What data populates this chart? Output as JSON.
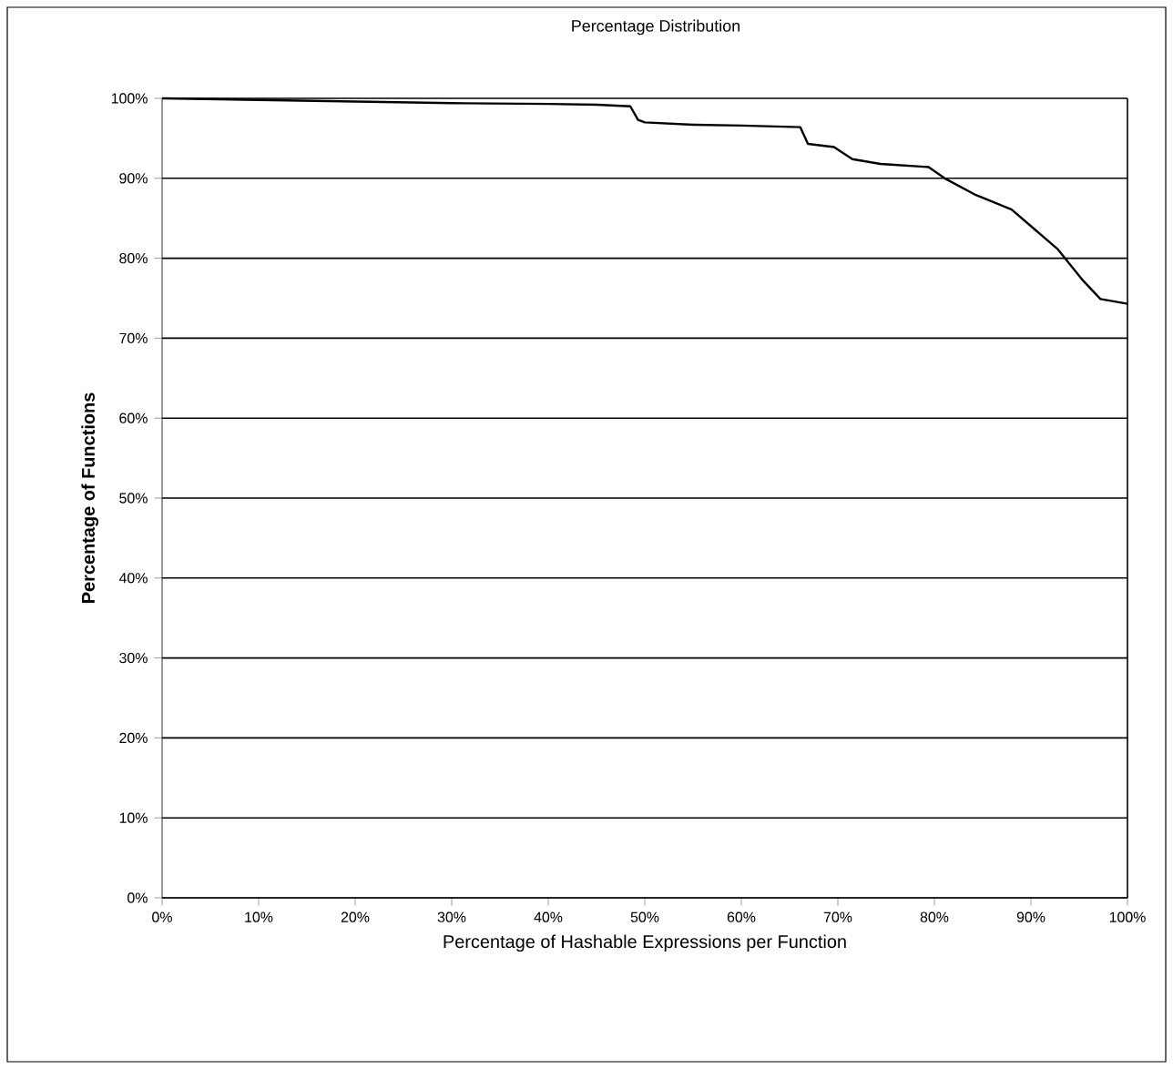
{
  "chart_data": {
    "type": "line",
    "title": "Percentage Distribution",
    "xlabel": "Percentage of Hashable Expressions per Function",
    "ylabel": "Percentage of Functions",
    "x": [
      0,
      10,
      20,
      30,
      40,
      45,
      48.5,
      49.3,
      50,
      55,
      60,
      66.1,
      66.9,
      69.6,
      71.5,
      74.4,
      79.4,
      81.2,
      84.3,
      88,
      90.4,
      92.8,
      95.4,
      97.2,
      100
    ],
    "series": [
      {
        "color": "#000000",
        "values": [
          100,
          99.8,
          99.6,
          99.4,
          99.3,
          99.2,
          99.0,
          97.3,
          97.0,
          96.7,
          96.6,
          96.4,
          94.3,
          93.9,
          92.4,
          91.8,
          91.4,
          89.9,
          87.9,
          86.1,
          83.6,
          81.1,
          77.2,
          74.9,
          74.3
        ]
      }
    ],
    "xlim": [
      0,
      100
    ],
    "ylim": [
      0,
      100
    ],
    "xticks": [
      {
        "value": 0,
        "label": "0%"
      },
      {
        "value": 10,
        "label": "10%"
      },
      {
        "value": 20,
        "label": "20%"
      },
      {
        "value": 30,
        "label": "30%"
      },
      {
        "value": 40,
        "label": "40%"
      },
      {
        "value": 50,
        "label": "50%"
      },
      {
        "value": 60,
        "label": "60%"
      },
      {
        "value": 70,
        "label": "70%"
      },
      {
        "value": 80,
        "label": "80%"
      },
      {
        "value": 90,
        "label": "90%"
      },
      {
        "value": 100,
        "label": "100%"
      }
    ],
    "yticks": [
      {
        "value": 0,
        "label": "0%"
      },
      {
        "value": 10,
        "label": "10%"
      },
      {
        "value": 20,
        "label": "20%"
      },
      {
        "value": 30,
        "label": "30%"
      },
      {
        "value": 40,
        "label": "40%"
      },
      {
        "value": 50,
        "label": "50%"
      },
      {
        "value": 60,
        "label": "60%"
      },
      {
        "value": 70,
        "label": "70%"
      },
      {
        "value": 80,
        "label": "80%"
      },
      {
        "value": 90,
        "label": "90%"
      },
      {
        "value": 100,
        "label": "100%"
      }
    ],
    "grid": "y",
    "legend": false,
    "marker": "none",
    "line_style": "solid"
  }
}
